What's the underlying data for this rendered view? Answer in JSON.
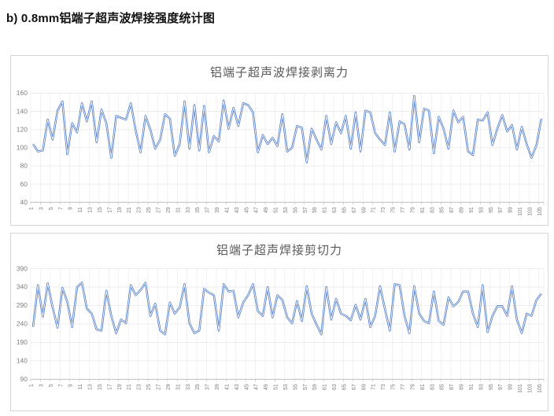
{
  "page": {
    "heading": "b) 0.8mm铝端子超声波焊接强度统计图"
  },
  "colors": {
    "line": "#4472C4",
    "line_core": "#ffffff",
    "gridline": "#e9e9e9",
    "axis_line": "#bfbfbf",
    "tick_label": "#7f7f7f",
    "chart_title": "#595959",
    "chart_border": "#d6d6d6"
  },
  "chart_data": [
    {
      "type": "line",
      "title": "铝端子超声波焊接剥离力",
      "xlabel": "",
      "ylabel": "",
      "ylim": [
        40,
        160
      ],
      "y_ticks": [
        40,
        60,
        80,
        100,
        120,
        140,
        160
      ],
      "x_tick_labels": [
        1,
        3,
        5,
        7,
        9,
        11,
        13,
        15,
        17,
        19,
        21,
        23,
        25,
        27,
        29,
        31,
        33,
        35,
        37,
        39,
        41,
        43,
        45,
        47,
        49,
        51,
        53,
        55,
        57,
        59,
        61,
        63,
        65,
        67,
        69,
        71,
        73,
        75,
        77,
        79,
        81,
        83,
        85,
        87,
        89,
        91,
        93,
        95,
        97,
        99,
        101,
        103,
        105
      ],
      "grid": true,
      "legend": "none",
      "values": [
        104,
        96,
        97,
        131,
        109,
        141,
        151,
        93,
        127,
        117,
        149,
        129,
        151,
        106,
        142,
        127,
        89,
        135,
        133,
        131,
        149,
        119,
        95,
        135,
        120,
        99,
        109,
        137,
        132,
        91,
        104,
        151,
        99,
        147,
        97,
        146,
        95,
        113,
        107,
        152,
        121,
        144,
        124,
        149,
        147,
        139,
        95,
        114,
        104,
        111,
        102,
        137,
        96,
        100,
        124,
        122,
        84,
        121,
        109,
        98,
        135,
        104,
        128,
        116,
        135,
        99,
        139,
        96,
        141,
        139,
        116,
        109,
        103,
        139,
        96,
        129,
        126,
        98,
        157,
        106,
        143,
        141,
        94,
        134,
        121,
        99,
        141,
        128,
        134,
        96,
        92,
        131,
        130,
        139,
        103,
        121,
        136,
        118,
        125,
        98,
        123,
        104,
        89,
        103,
        132
      ]
    },
    {
      "type": "line",
      "title": "铝端子超声焊接剪切力",
      "xlabel": "",
      "ylabel": "",
      "ylim": [
        90,
        390
      ],
      "y_ticks": [
        90,
        140,
        190,
        240,
        290,
        340,
        390
      ],
      "x_tick_labels": [
        1,
        3,
        5,
        7,
        9,
        11,
        13,
        15,
        17,
        19,
        21,
        23,
        25,
        27,
        29,
        31,
        33,
        35,
        37,
        39,
        41,
        43,
        45,
        47,
        49,
        51,
        53,
        55,
        57,
        59,
        61,
        63,
        65,
        67,
        69,
        71,
        73,
        75,
        77,
        79,
        81,
        83,
        85,
        87,
        89,
        91,
        93,
        95,
        97,
        99,
        101,
        103,
        105
      ],
      "grid": true,
      "legend": "none",
      "values": [
        232,
        345,
        260,
        350,
        285,
        230,
        338,
        300,
        232,
        340,
        352,
        282,
        268,
        225,
        222,
        330,
        262,
        215,
        252,
        242,
        345,
        318,
        332,
        352,
        262,
        295,
        222,
        212,
        298,
        268,
        285,
        348,
        242,
        215,
        222,
        335,
        325,
        318,
        222,
        348,
        328,
        330,
        258,
        298,
        318,
        348,
        275,
        262,
        340,
        258,
        318,
        305,
        258,
        242,
        302,
        248,
        342,
        268,
        238,
        212,
        340,
        252,
        308,
        268,
        262,
        250,
        292,
        252,
        308,
        232,
        262,
        342,
        280,
        222,
        348,
        345,
        262,
        215,
        342,
        268,
        248,
        242,
        328,
        248,
        238,
        312,
        288,
        300,
        328,
        328,
        268,
        232,
        345,
        218,
        262,
        288,
        288,
        262,
        342,
        252,
        215,
        268,
        262,
        305,
        322
      ]
    }
  ]
}
